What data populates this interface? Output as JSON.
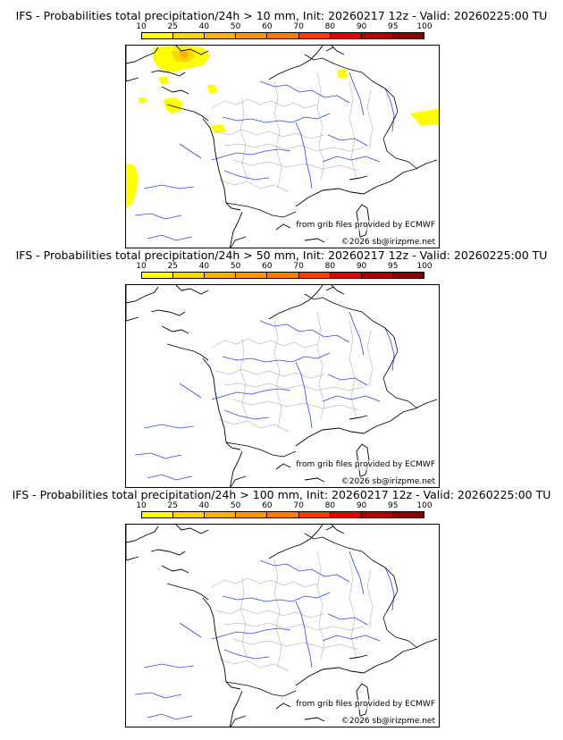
{
  "colorbar": {
    "ticks": [
      "10",
      "25",
      "40",
      "50",
      "60",
      "70",
      "80",
      "90",
      "95",
      "100"
    ],
    "colors": [
      "#ffff00",
      "#ffd700",
      "#ffb000",
      "#ff9500",
      "#ff7a00",
      "#ff3a00",
      "#e00000",
      "#b00000",
      "#8b0000"
    ]
  },
  "panels": [
    {
      "title": "IFS - Probabilities total precipitation/24h > 10 mm, Init: 20260217 12z - Valid: 20260225:00 TU",
      "credit_source": "from grib files provided by ECMWF",
      "credit_copyright": "©2026 sb@irizpme.net",
      "has_precip": true
    },
    {
      "title": "IFS - Probabilities total precipitation/24h > 50 mm, Init: 20260217 12z - Valid: 20260225:00 TU",
      "credit_source": "from grib files provided by ECMWF",
      "credit_copyright": "©2026 sb@irizpme.net",
      "has_precip": false
    },
    {
      "title": "IFS - Probabilities total precipitation/24h > 100 mm, Init: 20260217 12z - Valid: 20260225:00 TU",
      "credit_source": "from grib files provided by ECMWF",
      "credit_copyright": "©2026 sb@irizpme.net",
      "has_precip": false
    }
  ]
}
